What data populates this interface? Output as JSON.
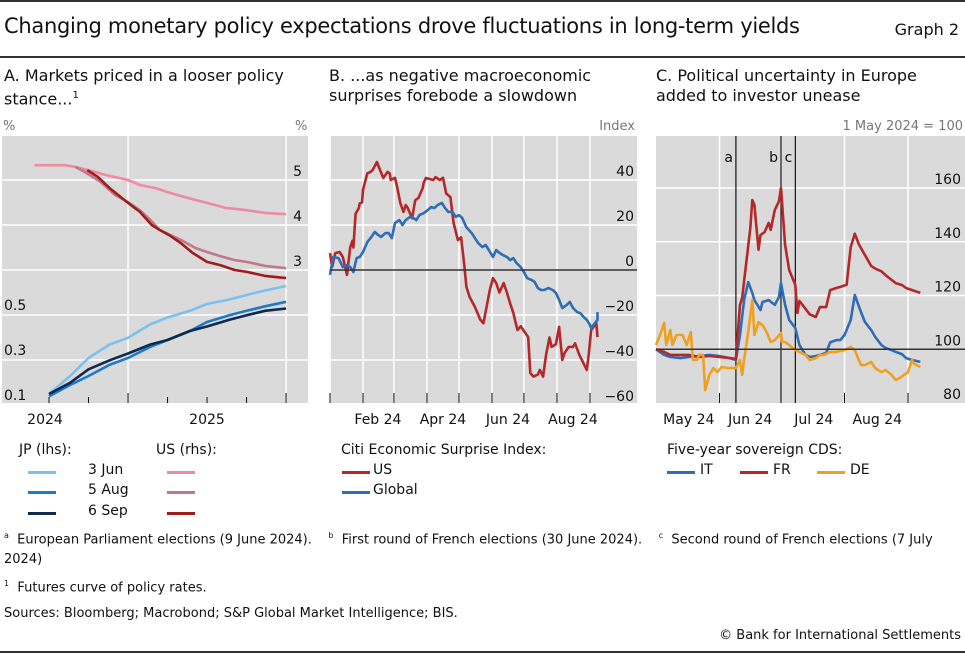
{
  "header": {
    "title": "Changing monetary policy expectations drove fluctuations in long-term yields",
    "graph_label": "Graph 2"
  },
  "panels": {
    "a": {
      "title_line1": "A. Markets priced in a looser policy",
      "title_line2": "stance...",
      "footnote_mark": "1",
      "unit_left": "%",
      "unit_right": "%",
      "legend": {
        "jp_header": "JP (lhs):",
        "us_header": "US (rhs):",
        "dates": [
          "3 Jun",
          "5 Aug",
          "6 Sep"
        ]
      }
    },
    "b": {
      "title_line1": "B. ...as negative macroeconomic",
      "title_line2": "surprises forebode a slowdown",
      "unit": "Index",
      "legend": {
        "header": "Citi Economic Surprise Index:",
        "items": [
          "US",
          "Global"
        ]
      }
    },
    "c": {
      "title_line1": "C. Political uncertainty in Europe",
      "title_line2": "added to investor unease",
      "unit": "1 May 2024 = 100",
      "legend": {
        "header": "Five-year sovereign CDS:",
        "items": [
          "IT",
          "FR",
          "DE"
        ]
      }
    }
  },
  "footnotes": {
    "a_mark": "a",
    "a_text": "European Parliament elections (9 June 2024).",
    "b_mark": "b",
    "b_text": "First round of French elections (30 June 2024).",
    "c_mark": "c",
    "c_text": "Second round of French elections (7 July",
    "c_cont": "2024)",
    "n1_mark": "1",
    "n1_text": "Futures curve of policy rates.",
    "sources": "Sources: Bloomberg; Macrobond; S&P Global Market Intelligence; BIS.",
    "copyright": "© Bank for International Settlements"
  },
  "chart_data": [
    {
      "type": "line",
      "title": "A. Markets priced in a looser policy stance...",
      "xlabel": "",
      "x_unit": "months since Jan 2024",
      "x_tick_labels": [
        "2024",
        "2025"
      ],
      "ylabel_left": "%",
      "ylabel_right": "%",
      "yleft_ticks": [
        0.1,
        0.3,
        0.5
      ],
      "yleft_lim": [
        0.1,
        1.1
      ],
      "yright_ticks": [
        3,
        4,
        5
      ],
      "yright_lim": [
        1,
        6
      ],
      "grid": true,
      "series": [
        {
          "name": "JP 3 Jun",
          "axis": "left",
          "color": "#7cc0ee",
          "x": [
            6,
            7.6,
            9,
            10.6,
            12,
            13.7,
            15,
            16.7,
            18,
            19.7,
            21,
            22.4,
            24
          ],
          "y": [
            0.14,
            0.22,
            0.3,
            0.36,
            0.39,
            0.45,
            0.48,
            0.51,
            0.54,
            0.56,
            0.58,
            0.6,
            0.62
          ]
        },
        {
          "name": "JP 5 Aug",
          "axis": "left",
          "color": "#1f78c8",
          "x": [
            6,
            7.6,
            9,
            10.6,
            12,
            13.7,
            15,
            16.7,
            18,
            19.7,
            21,
            22.4,
            24
          ],
          "y": [
            0.13,
            0.18,
            0.22,
            0.27,
            0.3,
            0.35,
            0.38,
            0.42,
            0.46,
            0.49,
            0.51,
            0.53,
            0.55
          ]
        },
        {
          "name": "JP 6 Sep",
          "axis": "left",
          "color": "#0f2a50",
          "x": [
            6,
            7.6,
            9,
            10.6,
            12,
            13.7,
            15,
            16.7,
            18,
            19.7,
            21,
            22.4,
            24
          ],
          "y": [
            0.14,
            0.19,
            0.25,
            0.29,
            0.32,
            0.36,
            0.38,
            0.42,
            0.44,
            0.47,
            0.49,
            0.51,
            0.52
          ]
        },
        {
          "name": "US 3 Jun",
          "axis": "right",
          "color": "#f08aa0",
          "x": [
            4.9,
            6.1,
            7.2,
            8,
            9,
            10.3,
            12,
            12.9,
            14.1,
            15,
            16.3,
            18,
            19.4,
            20.1,
            21,
            22.4,
            24
          ],
          "y": [
            5.33,
            5.33,
            5.33,
            5.29,
            5.22,
            5.11,
            5.0,
            4.89,
            4.82,
            4.73,
            4.62,
            4.49,
            4.38,
            4.36,
            4.33,
            4.27,
            4.24
          ]
        },
        {
          "name": "US 5 Aug",
          "axis": "right",
          "color": "#c0788a",
          "x": [
            8,
            8.7,
            9.9,
            11,
            12,
            12.9,
            13.7,
            14.4,
            15.2,
            16,
            17.1,
            18,
            19,
            20.1,
            21,
            22.4,
            24
          ],
          "y": [
            5.29,
            5.18,
            4.96,
            4.67,
            4.51,
            4.33,
            4.11,
            3.89,
            3.78,
            3.67,
            3.49,
            3.4,
            3.31,
            3.22,
            3.18,
            3.09,
            3.04
          ]
        },
        {
          "name": "US 6 Sep",
          "axis": "right",
          "color": "#a01c1c",
          "x": [
            8.9,
            9.7,
            10.6,
            12,
            12.9,
            13.8,
            14.4,
            15.2,
            16,
            16.9,
            18,
            19,
            20.1,
            21,
            22.4,
            24
          ],
          "y": [
            5.22,
            5.07,
            4.82,
            4.49,
            4.29,
            4.0,
            3.89,
            3.76,
            3.6,
            3.38,
            3.18,
            3.11,
            3.0,
            2.96,
            2.87,
            2.82
          ]
        }
      ]
    },
    {
      "type": "line",
      "title": "B. ...as negative macroeconomic surprises forebode a slowdown",
      "ylabel": "Index",
      "x_unit": "day of year 2024",
      "x_tick_labels": [
        "Feb 24",
        "Apr 24",
        "Jun 24",
        "Aug 24"
      ],
      "y_ticks": [
        -60,
        -40,
        -20,
        0,
        20,
        40
      ],
      "ylim": [
        -60,
        58
      ],
      "grid": true,
      "series": [
        {
          "name": "US",
          "color": "#b5282a",
          "x": [
            0,
            2,
            5,
            9,
            12,
            16,
            19,
            21,
            22,
            24,
            27,
            28,
            30,
            31,
            35,
            38,
            40,
            44,
            47,
            50,
            54,
            56,
            57,
            61,
            63,
            66,
            69,
            71,
            73,
            77,
            80,
            83,
            87,
            88,
            90,
            97,
            99,
            103,
            106,
            109,
            113,
            116,
            120,
            123,
            126,
            128,
            131,
            136,
            141,
            144,
            147,
            150,
            153,
            156,
            159,
            163,
            166,
            169,
            172,
            175,
            176,
            179,
            186,
            188,
            191,
            195,
            197,
            200,
            203,
            204,
            206,
            208,
            212,
            215,
            218,
            220,
            224,
            228,
            230,
            234,
            241,
            243,
            245,
            250,
            251
          ],
          "y": [
            7.5,
            1.3,
            7.5,
            8,
            5.8,
            -2.2,
            10,
            13,
            10,
            25,
            27.5,
            29.7,
            30,
            35.6,
            43,
            43.6,
            44.4,
            48,
            44.4,
            40.9,
            43.6,
            43,
            40,
            41,
            37,
            29.8,
            25.8,
            28.9,
            27.5,
            23,
            31,
            32,
            36.4,
            39,
            40.9,
            40,
            41.3,
            40,
            41,
            34,
            32.4,
            20.9,
            13.3,
            14.5,
            2.2,
            -7.5,
            -12,
            -16.4,
            -22,
            -23.7,
            -16.4,
            -8.9,
            -3.6,
            -5.8,
            -10,
            -5.8,
            -10,
            -14.8,
            -19,
            -25,
            -26.7,
            -25,
            -29.8,
            -45.8,
            -47.4,
            -46.5,
            -44.4,
            -47.4,
            -37,
            -34.7,
            -30,
            -34.2,
            -33,
            -25.3,
            -40,
            -37,
            -34.2,
            -34.2,
            -32.6,
            -37.8,
            -44.4,
            -37,
            -26.7,
            -23.7,
            -29.8
          ]
        },
        {
          "name": "Global",
          "color": "#2f6db5",
          "x": [
            0,
            3,
            8,
            12,
            16,
            19,
            22,
            25,
            28,
            31,
            35,
            38,
            42,
            45,
            48,
            52,
            55,
            58,
            61,
            65,
            68,
            71,
            75,
            78,
            81,
            84,
            88,
            92,
            95,
            98,
            101,
            105,
            108,
            111,
            115,
            118,
            121,
            124,
            128,
            133,
            136,
            139,
            143,
            146,
            149,
            153,
            156,
            159,
            162,
            166,
            169,
            172,
            175,
            179,
            182,
            185,
            189,
            192,
            195,
            198,
            201,
            205,
            209,
            212,
            215,
            218,
            222,
            225,
            228,
            232,
            235,
            238,
            241,
            244,
            245,
            251,
            251
          ],
          "y": [
            -2.2,
            5.8,
            5.3,
            1.3,
            2.2,
            1.3,
            -0.9,
            5.3,
            5.8,
            8,
            12.4,
            14.2,
            16.9,
            15.6,
            14.7,
            16.4,
            16.4,
            14.2,
            20.9,
            22.2,
            20,
            22.2,
            23.6,
            23.2,
            22.2,
            24.4,
            25.3,
            26.7,
            28,
            27.5,
            28.9,
            29.8,
            27.5,
            25.8,
            25.8,
            23.6,
            24.4,
            23.2,
            19,
            16.4,
            14.2,
            12,
            10.2,
            11.1,
            8.9,
            5.8,
            8.9,
            7.6,
            6.7,
            5.8,
            4.4,
            5.3,
            3.1,
            1.3,
            -0.9,
            -3.6,
            -4.4,
            -5.3,
            -8,
            -8.9,
            -8.9,
            -8,
            -8.9,
            -10.2,
            -13.3,
            -16.9,
            -15.6,
            -14.2,
            -16.9,
            -18.7,
            -19.2,
            -20.9,
            -22.2,
            -24.4,
            -25.8,
            -22.2,
            -18.7
          ]
        }
      ]
    },
    {
      "type": "line",
      "title": "C. Political uncertainty in Europe added to investor unease",
      "ylabel": "1 May 2024 = 100",
      "x_unit": "days since 1 May 2024",
      "x_tick_labels": [
        "May 24",
        "Jun 24",
        "Jul 24",
        "Aug 24"
      ],
      "y_ticks": [
        80,
        100,
        120,
        140,
        160
      ],
      "ylim": [
        80,
        178
      ],
      "grid": true,
      "annotations": [
        {
          "label": "a",
          "day": 39
        },
        {
          "label": "b",
          "day": 61
        },
        {
          "label": "c",
          "day": 68
        }
      ],
      "series": [
        {
          "name": "IT",
          "color": "#2f6db5",
          "x": [
            0,
            4,
            7,
            12,
            16,
            21,
            26,
            31,
            36,
            39,
            41,
            43,
            45,
            47,
            48,
            51,
            52,
            55,
            58,
            60,
            61,
            63,
            65,
            68,
            70,
            73,
            75,
            78,
            80,
            83,
            85,
            88,
            90,
            92,
            95,
            97,
            100,
            102,
            105,
            107,
            110,
            112,
            115,
            117,
            120,
            122,
            125,
            129
          ],
          "y": [
            100,
            97.9,
            97.1,
            96.7,
            97.1,
            97.5,
            97.9,
            97.5,
            96.7,
            96,
            105.3,
            118.3,
            125,
            121,
            118.3,
            114.6,
            117.6,
            118.3,
            116.5,
            119.4,
            124.6,
            116.5,
            110.9,
            107.9,
            101.6,
            97.9,
            97.1,
            97.5,
            97.9,
            98.6,
            102.6,
            103.4,
            103.4,
            105.3,
            110.9,
            120.2,
            113.9,
            110.1,
            107.2,
            104.6,
            101.6,
            100.5,
            99.7,
            99,
            98.2,
            96.7,
            96,
            95.3
          ]
        },
        {
          "name": "FR",
          "color": "#b5282a",
          "x": [
            0,
            4,
            7,
            12,
            16,
            21,
            26,
            31,
            36,
            39,
            41,
            42,
            44,
            46,
            47,
            48,
            50,
            51,
            53,
            55,
            56,
            58,
            60,
            61,
            63,
            65,
            68,
            69,
            70,
            73,
            75,
            78,
            80,
            83,
            85,
            88,
            90,
            93,
            95,
            97,
            99,
            102,
            105,
            107,
            110,
            112,
            115,
            117,
            120,
            122,
            125,
            129
          ],
          "y": [
            100,
            99,
            97.9,
            97.9,
            97.9,
            97.1,
            97.5,
            97.1,
            96.7,
            96.4,
            116.5,
            119,
            132,
            145,
            155.5,
            153.7,
            137,
            142.5,
            143.6,
            147,
            144.4,
            151.8,
            155,
            160,
            138.8,
            129.5,
            123.9,
            113.5,
            118,
            115,
            113,
            112,
            115.7,
            115.7,
            122,
            122.8,
            123.2,
            124,
            138,
            143,
            139,
            135,
            131,
            130,
            129,
            127.6,
            125.8,
            124.6,
            123.9,
            122.8,
            122,
            121
          ]
        },
        {
          "name": "DE",
          "color": "#f0a020",
          "x": [
            0,
            2,
            4,
            5,
            7,
            8,
            10,
            13,
            15,
            17,
            18,
            20,
            21,
            23,
            24,
            26,
            28,
            30,
            32,
            35,
            37,
            39,
            41,
            42,
            43,
            45,
            47,
            48,
            50,
            52,
            54,
            56,
            58,
            61,
            61.5,
            63,
            65,
            68,
            70,
            73,
            75,
            78,
            80,
            82,
            85,
            88,
            92,
            95,
            97,
            100,
            102,
            105,
            107,
            110,
            112,
            115,
            117,
            119,
            123,
            125,
            126,
            129
          ],
          "y": [
            101.6,
            105.3,
            109.8,
            101.6,
            107.2,
            101.6,
            105.3,
            105.3,
            101.6,
            106.4,
            96,
            96,
            97.9,
            97.9,
            84.8,
            90.4,
            93,
            91.5,
            93.4,
            93,
            93,
            93,
            96,
            90.4,
            96,
            106.4,
            118.3,
            105.3,
            110.1,
            109,
            106.4,
            102.7,
            103.4,
            106,
            102.7,
            102.7,
            101.6,
            99.7,
            99,
            97.9,
            96,
            96.7,
            97.9,
            97.9,
            99,
            99,
            99.7,
            100.8,
            99.7,
            94.1,
            94.1,
            95.3,
            93,
            91.5,
            92.3,
            90.4,
            88.6,
            89.3,
            91.5,
            96,
            94.5,
            93.4
          ]
        }
      ]
    }
  ]
}
